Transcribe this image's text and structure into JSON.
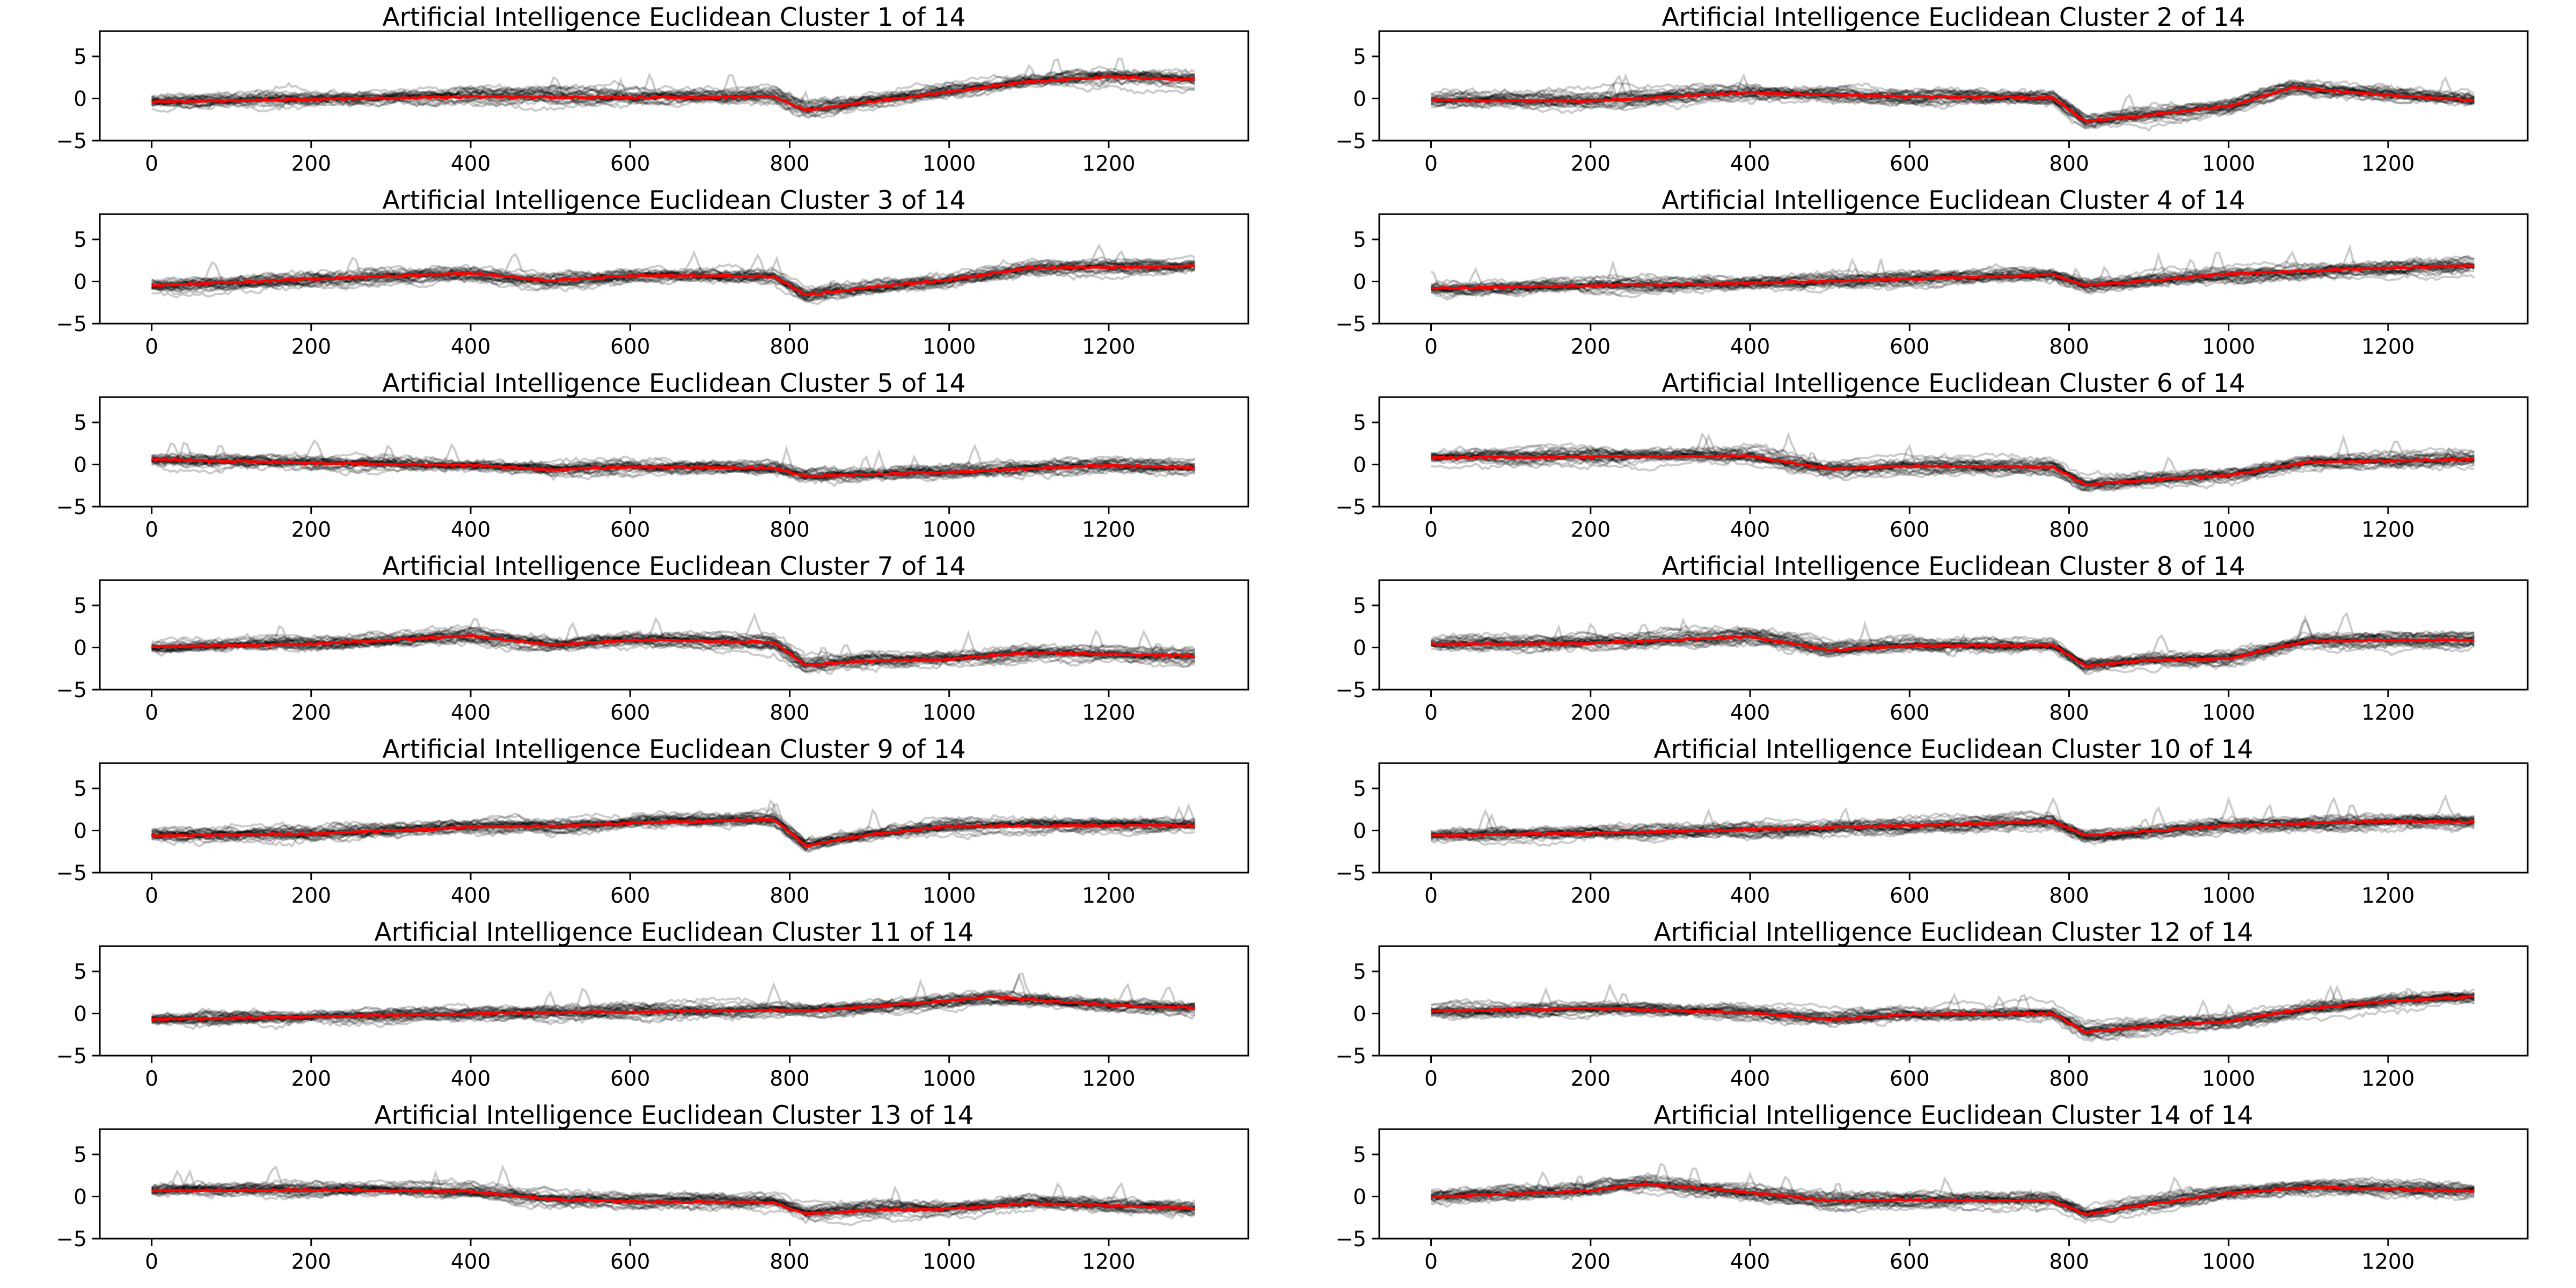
{
  "chart_data": [
    {
      "type": "line",
      "title": "Artificial Intelligence Euclidean Cluster 1 of 14",
      "xlabel": "",
      "ylabel": "",
      "xticks": [
        0,
        200,
        400,
        600,
        800,
        1000,
        1200
      ],
      "yticks": [
        -5,
        0,
        5
      ],
      "xlim": [
        -65,
        1375
      ],
      "ylim": [
        -5,
        8
      ],
      "n_points": 1310,
      "series": [
        {
          "role": "centroid",
          "color": "#ff0000",
          "x": [
            0,
            200,
            400,
            600,
            780,
            820,
            1000,
            1100,
            1200,
            1310
          ],
          "values": [
            -0.4,
            -0.1,
            0.2,
            0.1,
            0.2,
            -1.4,
            0.8,
            2.0,
            2.6,
            2.2
          ]
        }
      ],
      "member_style": {
        "color": "#000000",
        "opacity": 0.2
      }
    },
    {
      "type": "line",
      "title": "Artificial Intelligence Euclidean Cluster 2 of 14",
      "xlabel": "",
      "ylabel": "",
      "xticks": [
        0,
        200,
        400,
        600,
        800,
        1000,
        1200
      ],
      "yticks": [
        -5,
        0,
        5
      ],
      "xlim": [
        -65,
        1375
      ],
      "ylim": [
        -5,
        8
      ],
      "n_points": 1310,
      "series": [
        {
          "role": "centroid",
          "color": "#ff0000",
          "x": [
            0,
            200,
            400,
            600,
            780,
            820,
            900,
            1000,
            1080,
            1200,
            1310
          ],
          "values": [
            -0.2,
            -0.3,
            0.7,
            0.2,
            0.1,
            -2.7,
            -2.0,
            -0.9,
            1.3,
            0.4,
            -0.2
          ]
        }
      ],
      "member_style": {
        "color": "#000000",
        "opacity": 0.2
      }
    },
    {
      "type": "line",
      "title": "Artificial Intelligence Euclidean Cluster 3 of 14",
      "xlabel": "",
      "ylabel": "",
      "xticks": [
        0,
        200,
        400,
        600,
        800,
        1000,
        1200
      ],
      "yticks": [
        -5,
        0,
        5
      ],
      "xlim": [
        -65,
        1375
      ],
      "ylim": [
        -5,
        8
      ],
      "n_points": 1310,
      "series": [
        {
          "role": "centroid",
          "color": "#ff0000",
          "x": [
            0,
            200,
            400,
            500,
            600,
            780,
            820,
            900,
            1000,
            1100,
            1310
          ],
          "values": [
            -0.5,
            0.3,
            1.0,
            0.1,
            0.7,
            0.6,
            -1.6,
            -0.7,
            0.2,
            1.6,
            1.8
          ]
        }
      ],
      "member_style": {
        "color": "#000000",
        "opacity": 0.2
      }
    },
    {
      "type": "line",
      "title": "Artificial Intelligence Euclidean Cluster 4 of 14",
      "xlabel": "",
      "ylabel": "",
      "xticks": [
        0,
        200,
        400,
        600,
        800,
        1000,
        1200
      ],
      "yticks": [
        -5,
        0,
        5
      ],
      "xlim": [
        -65,
        1375
      ],
      "ylim": [
        -5,
        8
      ],
      "n_points": 1310,
      "series": [
        {
          "role": "centroid",
          "color": "#ff0000",
          "x": [
            0,
            200,
            400,
            600,
            780,
            820,
            1000,
            1200,
            1310
          ],
          "values": [
            -0.8,
            -0.5,
            -0.2,
            0.3,
            0.8,
            -0.5,
            0.9,
            1.6,
            1.9
          ]
        }
      ],
      "member_style": {
        "color": "#000000",
        "opacity": 0.2
      }
    },
    {
      "type": "line",
      "title": "Artificial Intelligence Euclidean Cluster 5 of 14",
      "xlabel": "",
      "ylabel": "",
      "xticks": [
        0,
        200,
        400,
        600,
        800,
        1000,
        1200
      ],
      "yticks": [
        -5,
        0,
        5
      ],
      "xlim": [
        -65,
        1375
      ],
      "ylim": [
        -5,
        8
      ],
      "n_points": 1310,
      "series": [
        {
          "role": "centroid",
          "color": "#ff0000",
          "x": [
            0,
            200,
            400,
            500,
            600,
            780,
            820,
            1000,
            1200,
            1310
          ],
          "values": [
            0.6,
            0.2,
            -0.1,
            -0.6,
            -0.3,
            -0.4,
            -1.4,
            -0.9,
            -0.1,
            -0.4
          ]
        }
      ],
      "member_style": {
        "color": "#000000",
        "opacity": 0.2
      }
    },
    {
      "type": "line",
      "title": "Artificial Intelligence Euclidean Cluster 6 of 14",
      "xlabel": "",
      "ylabel": "",
      "xticks": [
        0,
        200,
        400,
        600,
        800,
        1000,
        1200
      ],
      "yticks": [
        -5,
        0,
        5
      ],
      "xlim": [
        -65,
        1375
      ],
      "ylim": [
        -5,
        8
      ],
      "n_points": 1310,
      "series": [
        {
          "role": "centroid",
          "color": "#ff0000",
          "x": [
            0,
            200,
            400,
            500,
            600,
            780,
            820,
            900,
            1000,
            1100,
            1310
          ],
          "values": [
            0.8,
            0.9,
            1.0,
            -0.5,
            -0.2,
            -0.3,
            -2.4,
            -1.8,
            -1.3,
            0.3,
            0.6
          ]
        }
      ],
      "member_style": {
        "color": "#000000",
        "opacity": 0.2
      }
    },
    {
      "type": "line",
      "title": "Artificial Intelligence Euclidean Cluster 7 of 14",
      "xlabel": "",
      "ylabel": "",
      "xticks": [
        0,
        200,
        400,
        600,
        800,
        1000,
        1200
      ],
      "yticks": [
        -5,
        0,
        5
      ],
      "xlim": [
        -65,
        1375
      ],
      "ylim": [
        -5,
        8
      ],
      "n_points": 1310,
      "series": [
        {
          "role": "centroid",
          "color": "#ff0000",
          "x": [
            0,
            200,
            400,
            500,
            600,
            780,
            820,
            900,
            1000,
            1100,
            1310
          ],
          "values": [
            0.1,
            0.4,
            1.4,
            0.3,
            0.9,
            0.6,
            -2.1,
            -1.6,
            -1.4,
            -0.6,
            -1.0
          ]
        }
      ],
      "member_style": {
        "color": "#000000",
        "opacity": 0.2
      }
    },
    {
      "type": "line",
      "title": "Artificial Intelligence Euclidean Cluster 8 of 14",
      "xlabel": "",
      "ylabel": "",
      "xticks": [
        0,
        200,
        400,
        600,
        800,
        1000,
        1200
      ],
      "yticks": [
        -5,
        0,
        5
      ],
      "xlim": [
        -65,
        1375
      ],
      "ylim": [
        -5,
        8
      ],
      "n_points": 1310,
      "series": [
        {
          "role": "centroid",
          "color": "#ff0000",
          "x": [
            0,
            200,
            400,
            500,
            600,
            780,
            820,
            900,
            1000,
            1100,
            1310
          ],
          "values": [
            0.4,
            0.5,
            1.3,
            -0.3,
            0.2,
            0.3,
            -2.2,
            -1.5,
            -1.3,
            0.8,
            0.9
          ]
        }
      ],
      "member_style": {
        "color": "#000000",
        "opacity": 0.2
      }
    },
    {
      "type": "line",
      "title": "Artificial Intelligence Euclidean Cluster 9 of 14",
      "xlabel": "",
      "ylabel": "",
      "xticks": [
        0,
        200,
        400,
        600,
        800,
        1000,
        1200
      ],
      "yticks": [
        -5,
        0,
        5
      ],
      "xlim": [
        -65,
        1375
      ],
      "ylim": [
        -5,
        8
      ],
      "n_points": 1310,
      "series": [
        {
          "role": "centroid",
          "color": "#ff0000",
          "x": [
            0,
            200,
            400,
            500,
            600,
            780,
            820,
            900,
            1000,
            1310
          ],
          "values": [
            -0.6,
            -0.4,
            0.4,
            0.5,
            0.9,
            1.3,
            -1.8,
            -0.5,
            0.5,
            0.6
          ]
        }
      ],
      "member_style": {
        "color": "#000000",
        "opacity": 0.2
      }
    },
    {
      "type": "line",
      "title": "Artificial Intelligence Euclidean Cluster 10 of 14",
      "xlabel": "",
      "ylabel": "",
      "xticks": [
        0,
        200,
        400,
        600,
        800,
        1000,
        1200
      ],
      "yticks": [
        -5,
        0,
        5
      ],
      "xlim": [
        -65,
        1375
      ],
      "ylim": [
        -5,
        8
      ],
      "n_points": 1310,
      "series": [
        {
          "role": "centroid",
          "color": "#ff0000",
          "x": [
            0,
            200,
            400,
            600,
            780,
            820,
            1000,
            1200,
            1310
          ],
          "values": [
            -0.6,
            -0.3,
            0.1,
            0.6,
            1.1,
            -0.6,
            0.6,
            1.1,
            1.0
          ]
        }
      ],
      "member_style": {
        "color": "#000000",
        "opacity": 0.2
      }
    },
    {
      "type": "line",
      "title": "Artificial Intelligence Euclidean Cluster 11 of 14",
      "xlabel": "",
      "ylabel": "",
      "xticks": [
        0,
        200,
        400,
        600,
        800,
        1000,
        1200
      ],
      "yticks": [
        -5,
        0,
        5
      ],
      "xlim": [
        -65,
        1375
      ],
      "ylim": [
        -5,
        8
      ],
      "n_points": 1310,
      "series": [
        {
          "role": "centroid",
          "color": "#ff0000",
          "x": [
            0,
            200,
            400,
            600,
            780,
            820,
            1000,
            1050,
            1200,
            1310
          ],
          "values": [
            -0.7,
            -0.4,
            0.0,
            0.2,
            0.4,
            0.3,
            1.5,
            2.0,
            1.0,
            0.7
          ]
        }
      ],
      "member_style": {
        "color": "#000000",
        "opacity": 0.2
      }
    },
    {
      "type": "line",
      "title": "Artificial Intelligence Euclidean Cluster 12 of 14",
      "xlabel": "",
      "ylabel": "",
      "xticks": [
        0,
        200,
        400,
        600,
        800,
        1000,
        1200
      ],
      "yticks": [
        -5,
        0,
        5
      ],
      "xlim": [
        -65,
        1375
      ],
      "ylim": [
        -5,
        8
      ],
      "n_points": 1310,
      "series": [
        {
          "role": "centroid",
          "color": "#ff0000",
          "x": [
            0,
            200,
            400,
            500,
            600,
            780,
            820,
            900,
            1000,
            1100,
            1200,
            1310
          ],
          "values": [
            0.3,
            0.6,
            0.1,
            -0.7,
            -0.1,
            0.0,
            -2.2,
            -1.5,
            -0.9,
            0.6,
            1.5,
            2.0
          ]
        }
      ],
      "member_style": {
        "color": "#000000",
        "opacity": 0.2
      }
    },
    {
      "type": "line",
      "title": "Artificial Intelligence Euclidean Cluster 13 of 14",
      "xlabel": "",
      "ylabel": "",
      "xticks": [
        0,
        200,
        400,
        600,
        800,
        1000,
        1200
      ],
      "yticks": [
        -5,
        0,
        5
      ],
      "xlim": [
        -65,
        1375
      ],
      "ylim": [
        -5,
        8
      ],
      "n_points": 1310,
      "series": [
        {
          "role": "centroid",
          "color": "#ff0000",
          "x": [
            0,
            200,
            400,
            500,
            600,
            780,
            820,
            900,
            1000,
            1100,
            1310
          ],
          "values": [
            0.7,
            0.8,
            0.6,
            -0.3,
            -0.6,
            -0.7,
            -2.1,
            -1.6,
            -1.5,
            -0.8,
            -1.4
          ]
        }
      ],
      "member_style": {
        "color": "#000000",
        "opacity": 0.2
      }
    },
    {
      "type": "line",
      "title": "Artificial Intelligence Euclidean Cluster 14 of 14",
      "xlabel": "",
      "ylabel": "",
      "xticks": [
        0,
        200,
        400,
        600,
        800,
        1000,
        1200
      ],
      "yticks": [
        -5,
        0,
        5
      ],
      "xlim": [
        -65,
        1375
      ],
      "ylim": [
        -5,
        8
      ],
      "n_points": 1310,
      "series": [
        {
          "role": "centroid",
          "color": "#ff0000",
          "x": [
            0,
            200,
            270,
            400,
            500,
            600,
            780,
            820,
            900,
            1000,
            1100,
            1200,
            1310
          ],
          "values": [
            -0.1,
            0.7,
            1.5,
            0.5,
            -0.5,
            -0.4,
            -0.5,
            -2.1,
            -0.9,
            0.4,
            1.1,
            0.9,
            0.6
          ]
        }
      ],
      "member_style": {
        "color": "#000000",
        "opacity": 0.2
      }
    }
  ]
}
